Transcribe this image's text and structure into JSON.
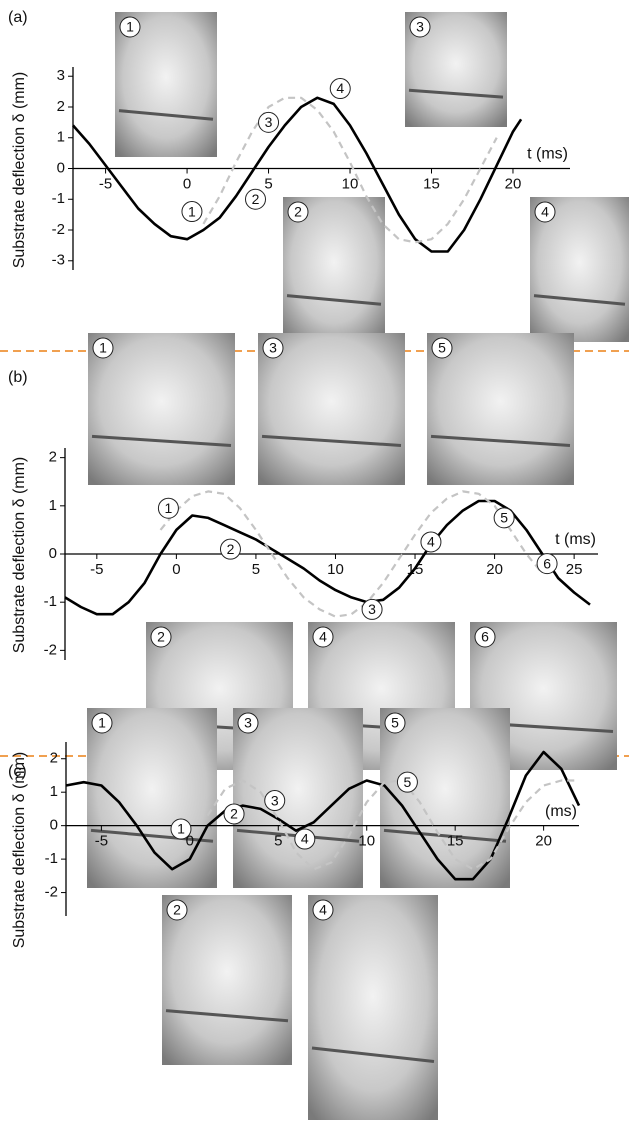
{
  "chart_data": [
    {
      "type": "line",
      "label": "(a)",
      "y_label": "Substrate deflection δ (mm)",
      "x_label": "t (ms)",
      "x": [
        -7,
        -6,
        -5,
        -4,
        -3,
        -2,
        -1,
        0,
        1,
        2,
        3,
        4,
        5,
        6,
        7,
        8,
        9,
        10,
        11,
        12,
        13,
        14,
        15,
        16,
        17,
        18,
        19,
        20,
        20.5
      ],
      "series": [
        {
          "color": "#000000",
          "values": [
            1.4,
            0.8,
            0.1,
            -0.6,
            -1.3,
            -1.8,
            -2.2,
            -2.3,
            -2.0,
            -1.6,
            -0.9,
            -0.1,
            0.7,
            1.4,
            2.0,
            2.3,
            2.1,
            1.4,
            0.5,
            -0.5,
            -1.5,
            -2.3,
            -2.7,
            -2.7,
            -2.0,
            -1.0,
            0.1,
            1.2,
            1.6
          ]
        },
        {
          "color": "#c4c4c4",
          "dashed": true,
          "values": [
            null,
            null,
            null,
            null,
            null,
            null,
            null,
            null,
            -1.8,
            -0.9,
            0.2,
            1.2,
            2.0,
            2.3,
            2.3,
            1.9,
            1.2,
            0.2,
            -0.9,
            -1.8,
            -2.3,
            -2.4,
            -2.3,
            -1.8,
            -1.0,
            0,
            1.0,
            null,
            null
          ]
        }
      ],
      "xlim": [
        -7,
        23.5
      ],
      "ylim": [
        -3.3,
        3.3
      ],
      "xticks": [
        -5,
        0,
        5,
        10,
        15,
        20
      ],
      "yticks": [
        -3,
        -2,
        -1,
        0,
        1,
        2,
        3
      ],
      "annotations": [
        {
          "label": "1",
          "x": 0.3,
          "y": -1.4
        },
        {
          "label": "2",
          "x": 4.2,
          "y": -1.0
        },
        {
          "label": "3",
          "x": 5,
          "y": 1.5
        },
        {
          "label": "4",
          "x": 9.4,
          "y": 2.6
        }
      ],
      "insets": [
        "1",
        "3",
        "2",
        "4"
      ]
    },
    {
      "type": "line",
      "label": "(b)",
      "y_label": "Substrate deflection δ (mm)",
      "x_label": "t (ms)",
      "x": [
        -7,
        -6,
        -5,
        -4,
        -3,
        -2,
        -1,
        0,
        1,
        2,
        3,
        4,
        5,
        6,
        7,
        8,
        9,
        10,
        11,
        12,
        13,
        14,
        15,
        16,
        17,
        18,
        19,
        20,
        21,
        22,
        23,
        24,
        25,
        26
      ],
      "series": [
        {
          "color": "#000000",
          "values": [
            -0.9,
            -1.1,
            -1.25,
            -1.25,
            -1.0,
            -0.6,
            0.0,
            0.5,
            0.8,
            0.75,
            0.6,
            0.45,
            0.3,
            0.1,
            -0.1,
            -0.3,
            -0.55,
            -0.75,
            -0.9,
            -1.0,
            -0.95,
            -0.7,
            -0.3,
            0.2,
            0.6,
            0.9,
            1.1,
            1.1,
            0.9,
            0.5,
            0,
            -0.5,
            -0.8,
            -1.05
          ]
        },
        {
          "color": "#c4c4c4",
          "dashed": true,
          "values": [
            null,
            null,
            null,
            null,
            null,
            null,
            0.5,
            0.9,
            1.2,
            1.3,
            1.25,
            0.95,
            0.5,
            0,
            -0.5,
            -0.9,
            -1.15,
            -1.3,
            -1.25,
            -1.0,
            -0.6,
            -0.1,
            0.4,
            0.85,
            1.15,
            1.3,
            1.25,
            1.0,
            0.5,
            0,
            -0.4,
            null,
            null,
            null
          ]
        }
      ],
      "xlim": [
        -7,
        26.5
      ],
      "ylim": [
        -2.2,
        2.2
      ],
      "xticks": [
        -5,
        0,
        5,
        10,
        15,
        20,
        25
      ],
      "yticks": [
        -2,
        -1,
        0,
        1,
        2
      ],
      "annotations": [
        {
          "label": "1",
          "x": -0.5,
          "y": 0.95
        },
        {
          "label": "2",
          "x": 3.4,
          "y": 0.1
        },
        {
          "label": "3",
          "x": 12.3,
          "y": -1.15
        },
        {
          "label": "4",
          "x": 16,
          "y": 0.25
        },
        {
          "label": "5",
          "x": 20.6,
          "y": 0.75
        },
        {
          "label": "6",
          "x": 23.3,
          "y": -0.2
        }
      ],
      "insets": [
        "1",
        "3",
        "5",
        "2",
        "4",
        "6"
      ]
    },
    {
      "type": "line",
      "label": "(c)",
      "y_label": "Substrate deflection δ (mm)",
      "x_label": "(ms)",
      "x": [
        -7,
        -6,
        -5,
        -4,
        -3,
        -2,
        -1,
        0,
        1,
        2,
        3,
        4,
        5,
        6,
        7,
        8,
        9,
        10,
        11,
        12,
        13,
        14,
        15,
        16,
        17,
        18,
        19,
        20,
        21,
        22
      ],
      "series": [
        {
          "color": "#000000",
          "values": [
            1.2,
            1.3,
            1.2,
            0.7,
            0.0,
            -0.8,
            -1.3,
            -1.0,
            0.0,
            0.45,
            0.6,
            0.5,
            0.2,
            -0.15,
            0.1,
            0.6,
            1.1,
            1.35,
            1.2,
            0.6,
            -0.2,
            -1.0,
            -1.6,
            -1.6,
            -1.0,
            0.2,
            1.5,
            2.2,
            1.7,
            0.6
          ]
        },
        {
          "color": "#c4c4c4",
          "dashed": true,
          "values": [
            null,
            null,
            null,
            null,
            null,
            null,
            null,
            null,
            0.3,
            1.1,
            1.35,
            1.0,
            0.2,
            -0.8,
            -1.3,
            -1.1,
            -0.3,
            0.7,
            1.3,
            1.35,
            0.7,
            -0.2,
            -1.0,
            -1.3,
            -1.0,
            -0.1,
            0.7,
            1.2,
            1.35,
            1.35
          ]
        }
      ],
      "xlim": [
        -7,
        22
      ],
      "ylim": [
        -2.7,
        2.5
      ],
      "xticks": [
        -5,
        0,
        5,
        10,
        15,
        20
      ],
      "yticks": [
        -2,
        -1,
        0,
        1,
        2
      ],
      "annotations": [
        {
          "label": "1",
          "x": -0.5,
          "y": -0.1
        },
        {
          "label": "2",
          "x": 2.5,
          "y": 0.35
        },
        {
          "label": "3",
          "x": 4.8,
          "y": 0.75
        },
        {
          "label": "4",
          "x": 6.5,
          "y": -0.4
        },
        {
          "label": "5",
          "x": 12.3,
          "y": 1.3
        }
      ],
      "insets": [
        "1",
        "3",
        "5",
        "2",
        "4"
      ]
    }
  ]
}
